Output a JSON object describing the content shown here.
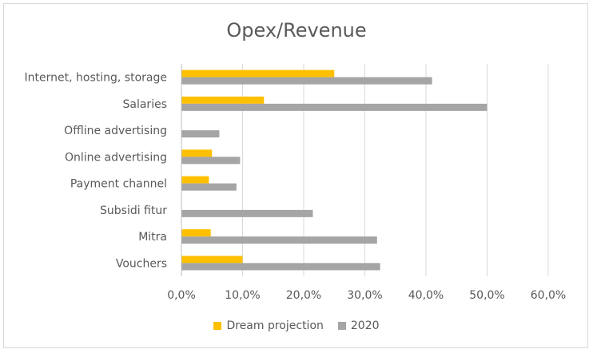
{
  "chart_data": {
    "type": "bar",
    "orientation": "horizontal",
    "title": "Opex/Revenue",
    "categories": [
      "Internet, hosting, storage",
      "Salaries",
      "Offline advertising",
      "Online advertising",
      "Payment channel",
      "Subsidi fitur",
      "Mitra",
      "Vouchers"
    ],
    "series": [
      {
        "name": "Dream projection",
        "color": "#ffc000",
        "values": [
          25.0,
          13.5,
          0,
          5.0,
          4.5,
          0,
          4.8,
          10.0
        ]
      },
      {
        "name": "2020",
        "color": "#a5a5a5",
        "values": [
          41.0,
          50.0,
          6.2,
          9.6,
          9.0,
          21.5,
          32.0,
          32.5
        ]
      }
    ],
    "xlim": [
      0,
      60
    ],
    "xticks": [
      "0,0%",
      "10,0%",
      "20,0%",
      "30,0%",
      "40,0%",
      "50,0%",
      "60,0%"
    ],
    "grid": true,
    "legend_position": "bottom"
  }
}
